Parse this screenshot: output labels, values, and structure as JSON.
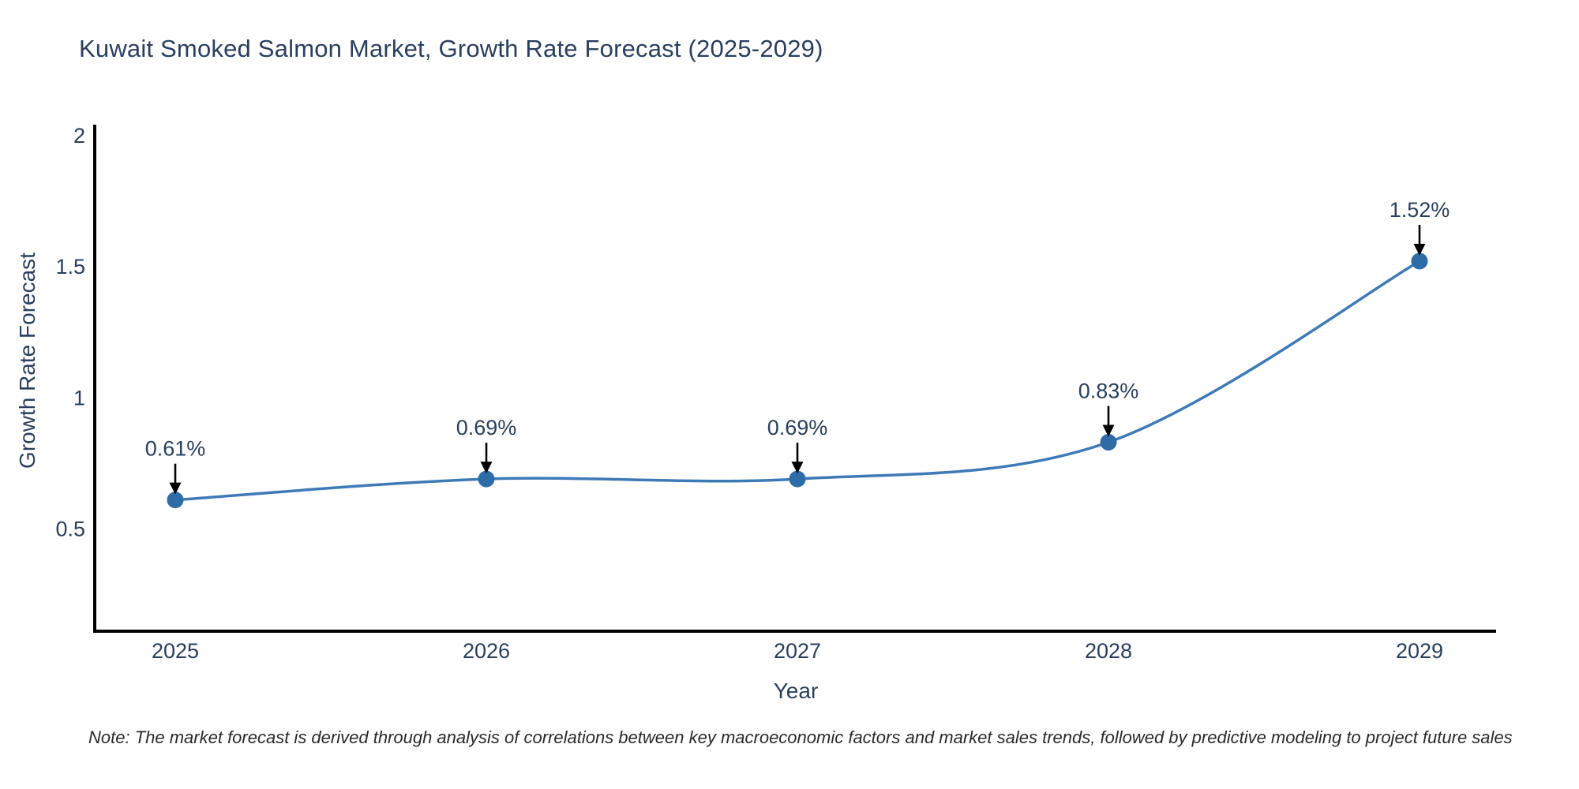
{
  "title": "Kuwait Smoked Salmon Market, Growth Rate Forecast (2025-2029)",
  "note": "Note: The market forecast is derived through analysis of correlations between key macroeconomic factors and market sales trends, followed by predictive modeling to project future sales",
  "chart_data": {
    "type": "line",
    "title": "Kuwait Smoked Salmon Market, Growth Rate Forecast (2025-2029)",
    "xlabel": "Year",
    "ylabel": "Growth Rate Forecast",
    "x": [
      "2025",
      "2026",
      "2027",
      "2028",
      "2029"
    ],
    "series": [
      {
        "name": "Growth Rate Forecast",
        "values": [
          0.61,
          0.69,
          0.69,
          0.83,
          1.52
        ],
        "point_labels": [
          "0.61%",
          "0.69%",
          "0.69%",
          "0.83%",
          "1.52%"
        ]
      }
    ],
    "yticks": [
      0.5,
      1,
      1.5,
      2
    ],
    "ylim": [
      0.11,
      2.04
    ],
    "grid": false,
    "legend": false,
    "line_smoothing": true,
    "colors": {
      "line": "#3e7ab8",
      "marker": "#2e6ca8",
      "axis": "#000000",
      "text": "#2a3f5f",
      "annotation_text": "#2a3f5f",
      "arrow": "#000000",
      "background": "#ffffff"
    }
  }
}
